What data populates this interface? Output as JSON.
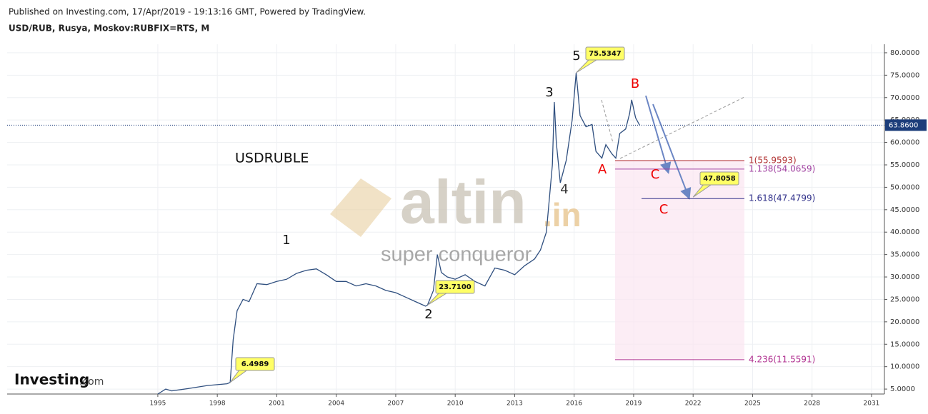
{
  "header": {
    "published": "Published on Investing.com, 17/Apr/2019 - 19:13:16 GMT, Powered by TradingView.",
    "symbol": "USD/RUB, Rusya, Moskov:RUBFIX=RTS, M"
  },
  "chart_data": {
    "type": "line",
    "title": "USDRUBLE",
    "x": [
      1995.0,
      1995.4,
      1995.7,
      1996.5,
      1997.5,
      1998.5,
      1998.65,
      1998.8,
      1999.0,
      1999.3,
      1999.6,
      2000.0,
      2000.5,
      2001.0,
      2001.5,
      2002.0,
      2002.5,
      2003.0,
      2003.5,
      2004.0,
      2004.5,
      2005.0,
      2005.5,
      2006.0,
      2006.5,
      2007.0,
      2007.5,
      2008.0,
      2008.5,
      2008.6,
      2008.9,
      2009.1,
      2009.3,
      2009.6,
      2010.0,
      2010.5,
      2011.0,
      2011.5,
      2012.0,
      2012.5,
      2013.0,
      2013.5,
      2014.0,
      2014.3,
      2014.6,
      2014.9,
      2015.0,
      2015.1,
      2015.3,
      2015.6,
      2015.9,
      2016.1,
      2016.3,
      2016.6,
      2016.9,
      2017.1,
      2017.4,
      2017.6,
      2017.9,
      2018.1,
      2018.3,
      2018.6,
      2018.8,
      2018.9,
      2019.1,
      2019.3
    ],
    "series": [
      {
        "name": "USD/RUB",
        "color": "#2f4f7f",
        "values": [
          3.9,
          5.0,
          4.6,
          5.1,
          5.8,
          6.2,
          6.5,
          16,
          22.5,
          25,
          24.5,
          28.5,
          28.3,
          29,
          29.5,
          30.8,
          31.5,
          31.8,
          30.5,
          29,
          29,
          28,
          28.5,
          28,
          27,
          26.5,
          25.5,
          24.5,
          23.5,
          23.71,
          27,
          35,
          31,
          30,
          29.5,
          30.5,
          29,
          28,
          32,
          31.5,
          30.5,
          32.5,
          34,
          36,
          40,
          55,
          69,
          60,
          51,
          56,
          65,
          75.53,
          66,
          63.5,
          64,
          58,
          56.5,
          59.5,
          57.5,
          56.5,
          62,
          63,
          66.5,
          69.5,
          65.5,
          63.86
        ]
      }
    ],
    "xlim": [
      1987.4,
      2031.65
    ],
    "xticks": [
      1995,
      1998,
      2001,
      2004,
      2007,
      2010,
      2013,
      2016,
      2019,
      2022,
      2025,
      2028,
      2031
    ],
    "ylim": [
      3.9,
      81.9
    ],
    "yticks": [
      {
        "value": 5,
        "label": "5.0000"
      },
      {
        "value": 10,
        "label": "10.0000"
      },
      {
        "value": 15,
        "label": "15.0000"
      },
      {
        "value": 20,
        "label": "20.0000"
      },
      {
        "value": 25,
        "label": "25.0000"
      },
      {
        "value": 30,
        "label": "30.0000"
      },
      {
        "value": 35,
        "label": "35.0000"
      },
      {
        "value": 40,
        "label": "40.0000"
      },
      {
        "value": 45,
        "label": "45.0000"
      },
      {
        "value": 50,
        "label": "50.0000"
      },
      {
        "value": 55,
        "label": "55.0000"
      },
      {
        "value": 60,
        "label": "60.0000"
      },
      {
        "value": 65,
        "label": "65.0000"
      },
      {
        "value": 70,
        "label": "70.0000"
      },
      {
        "value": 75,
        "label": "75.0000"
      },
      {
        "value": 80,
        "label": "80.0000"
      }
    ],
    "grid": true,
    "current_price": {
      "value": 63.86,
      "label": "63.8600"
    },
    "callouts": [
      {
        "value": 75.5347,
        "label": "75.5347"
      },
      {
        "value": 23.71,
        "label": "23.7100"
      },
      {
        "value": 6.4989,
        "label": "6.4989"
      },
      {
        "value": 47.8058,
        "label": "47.8058"
      }
    ],
    "fib_levels": [
      {
        "value": 55.9593,
        "label": "1(55.9593)",
        "color": "#b03030"
      },
      {
        "value": 54.0659,
        "label": "1.138(54.0659)",
        "color": "#a040a0"
      },
      {
        "value": 47.4799,
        "label": "1.618(47.4799)",
        "color": "#30308a"
      },
      {
        "value": 11.5591,
        "label": "4.236(11.5591)",
        "color": "#b03090"
      }
    ],
    "wave_labels": [
      "1",
      "2",
      "3",
      "4",
      "5",
      "A",
      "B",
      "C",
      "C"
    ],
    "watermark": {
      "brand": "altin",
      "domain": ".in",
      "tagline": "super conqueror"
    },
    "logo": {
      "name": "Investing",
      "suffix": ".com"
    }
  }
}
